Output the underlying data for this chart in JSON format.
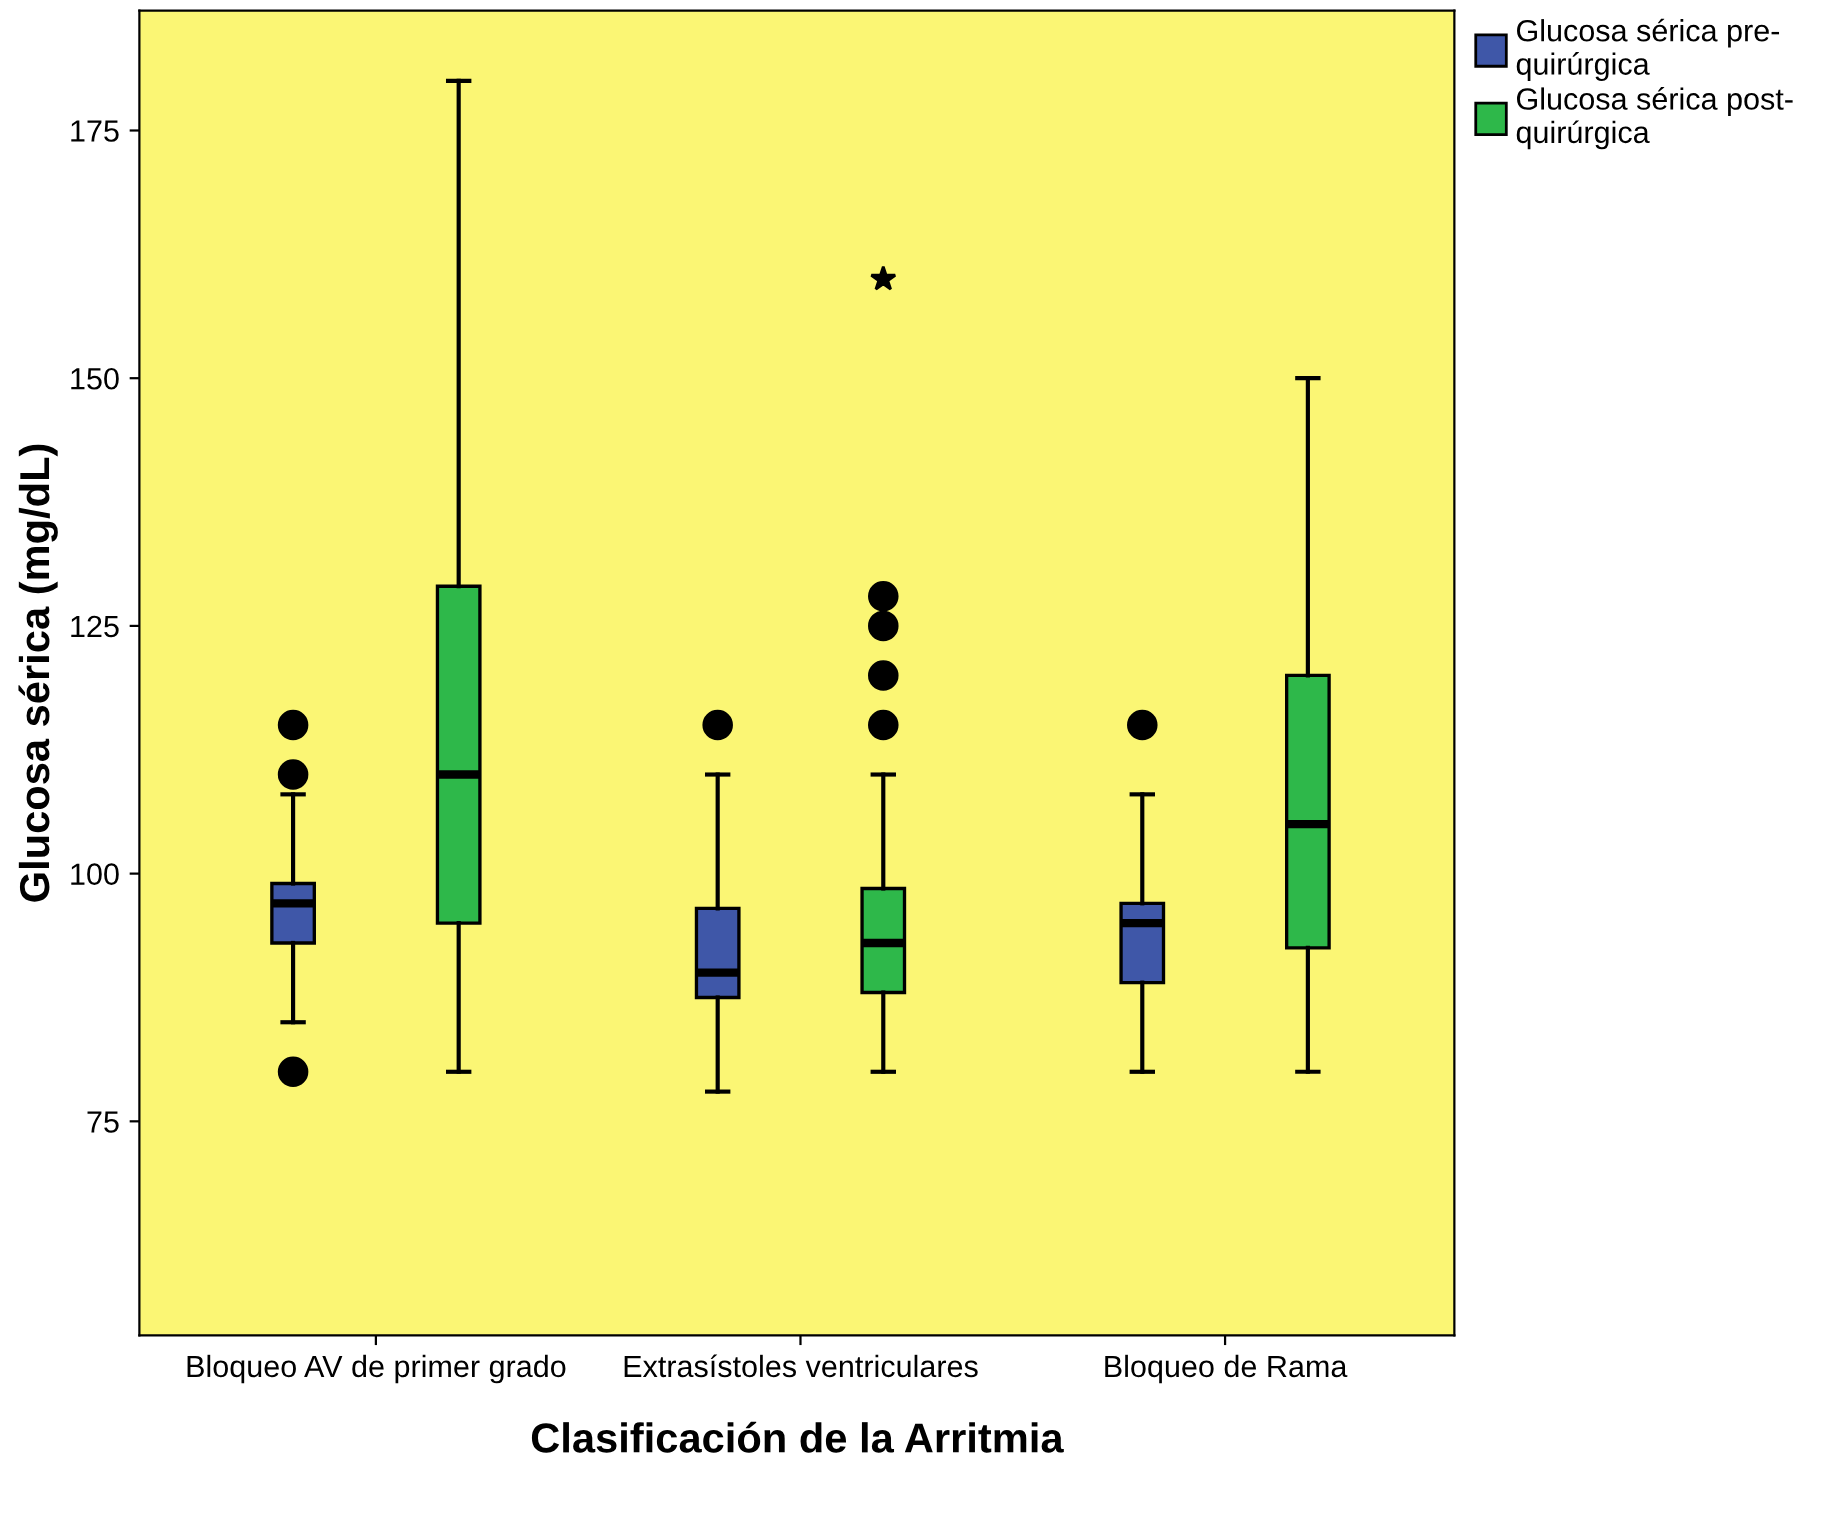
{
  "chart_data": {
    "type": "box",
    "xlabel": "Clasificación de la Arritmia",
    "ylabel": "Glucosa sérica (mg/dL)",
    "categories": [
      "Bloqueo AV de primer grado",
      "Extrasístoles ventriculares",
      "Bloqueo de Rama"
    ],
    "ylim": [
      53.4,
      187.1
    ],
    "yticks": [
      75,
      100,
      125,
      150,
      175
    ],
    "grid": false,
    "legend": "top right",
    "series": [
      {
        "name": "Glucosa sérica pre-quirúrgica",
        "color": "#3f57a8",
        "boxes": [
          {
            "low": 85,
            "q1": 93,
            "median": 97,
            "q3": 99,
            "high": 108,
            "outliers": [
              80,
              110,
              115
            ]
          },
          {
            "low": 78,
            "q1": 87.5,
            "median": 90,
            "q3": 96.5,
            "high": 110,
            "outliers": [
              115
            ]
          },
          {
            "low": 80,
            "q1": 89,
            "median": 95,
            "q3": 97,
            "high": 108,
            "outliers": [
              115
            ]
          }
        ]
      },
      {
        "name": "Glucosa sérica post-quirúrgica",
        "color": "#2eb84a",
        "boxes": [
          {
            "low": 80,
            "q1": 95,
            "median": 110,
            "q3": 129,
            "high": 180
          },
          {
            "low": 80,
            "q1": 88,
            "median": 93,
            "q3": 98.5,
            "high": 110,
            "outliers": [
              115,
              120,
              125,
              128,
              160
            ]
          },
          {
            "low": 80,
            "q1": 92.5,
            "median": 105,
            "q3": 120,
            "high": 150
          }
        ]
      }
    ]
  }
}
